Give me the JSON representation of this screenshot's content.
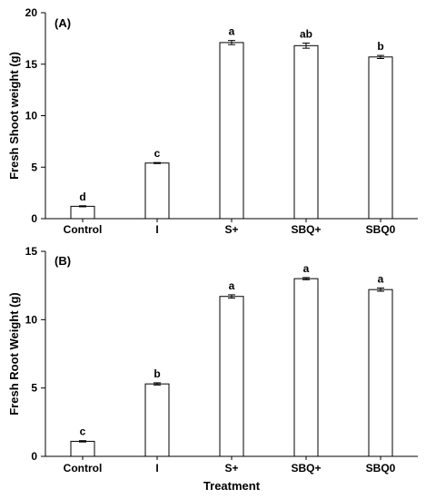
{
  "chart_data": [
    {
      "type": "bar",
      "panel_label": "(A)",
      "ylabel": "Fresh Shoot weight (g)",
      "xlabel": "",
      "categories": [
        "Control",
        "I",
        "S+",
        "SBQ+",
        "SBQ0"
      ],
      "values": [
        1.2,
        5.4,
        17.1,
        16.8,
        15.7
      ],
      "errors": [
        0.05,
        0.05,
        0.2,
        0.25,
        0.15
      ],
      "letters": [
        "d",
        "c",
        "a",
        "ab",
        "b"
      ],
      "ylim": [
        0,
        20
      ],
      "yticks": [
        0,
        5,
        10,
        15,
        20
      ],
      "grid": false,
      "bar_color": "#ffffff"
    },
    {
      "type": "bar",
      "panel_label": "(B)",
      "ylabel": "Fresh Root Weight (g)",
      "xlabel": "Treatment",
      "categories": [
        "Control",
        "I",
        "S+",
        "SBQ+",
        "SBQ0"
      ],
      "values": [
        1.1,
        5.3,
        11.7,
        13.0,
        12.2
      ],
      "errors": [
        0.05,
        0.08,
        0.12,
        0.08,
        0.12
      ],
      "letters": [
        "c",
        "b",
        "a",
        "a",
        "a"
      ],
      "ylim": [
        0,
        15
      ],
      "yticks": [
        0,
        5,
        10,
        15
      ],
      "grid": false,
      "bar_color": "#ffffff"
    }
  ]
}
